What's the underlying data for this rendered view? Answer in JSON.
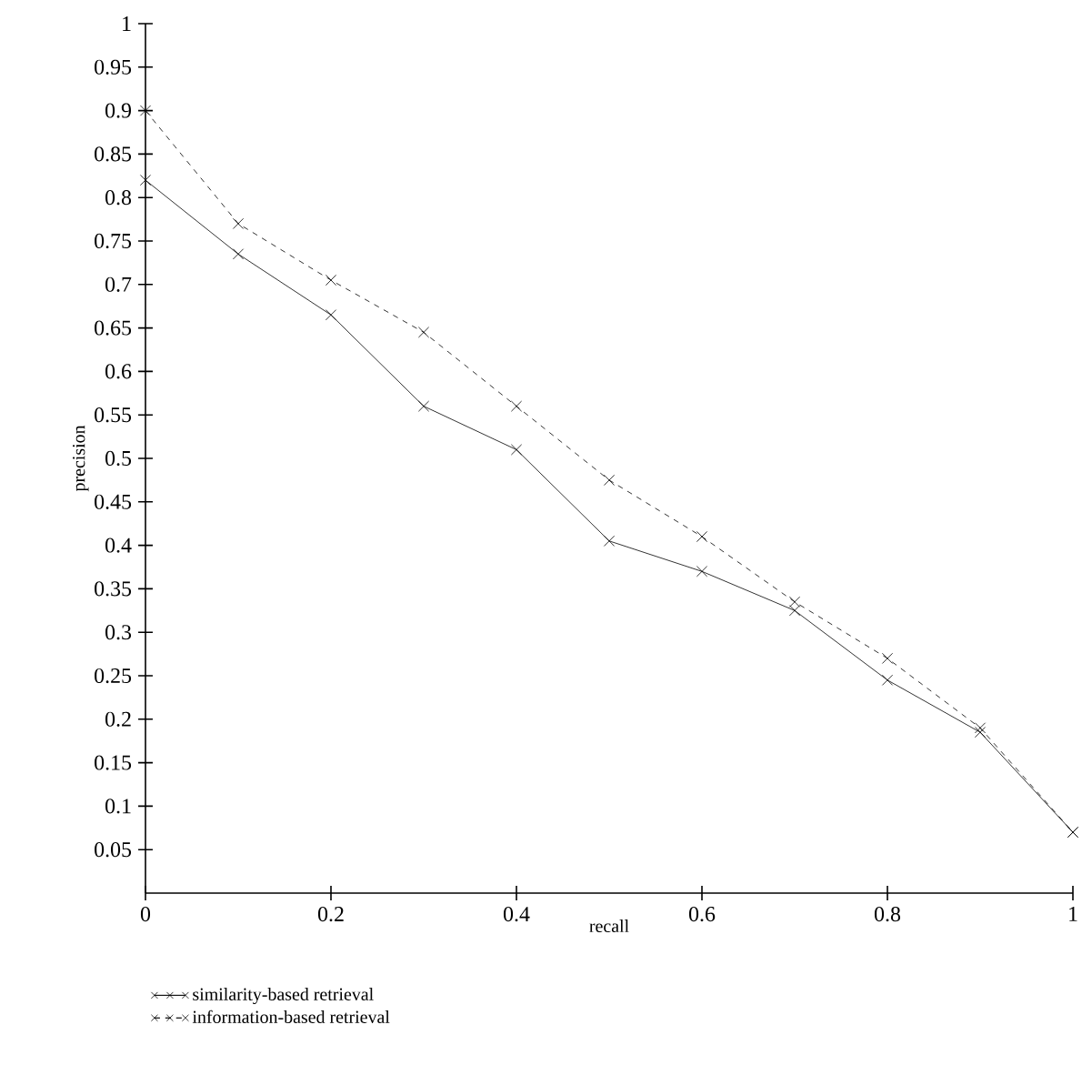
{
  "chart_data": {
    "type": "line",
    "xlabel": "recall",
    "ylabel": "precision",
    "x": [
      0,
      0.1,
      0.2,
      0.3,
      0.4,
      0.5,
      0.6,
      0.7,
      0.8,
      0.9,
      1
    ],
    "xlim": [
      0,
      1
    ],
    "ylim": [
      0,
      1
    ],
    "xticks": [
      0,
      0.2,
      0.4,
      0.6,
      0.8,
      1
    ],
    "yticks": [
      0.05,
      0.1,
      0.15,
      0.2,
      0.25,
      0.3,
      0.35,
      0.4,
      0.45,
      0.5,
      0.55,
      0.6,
      0.65,
      0.7,
      0.75,
      0.8,
      0.85,
      0.9,
      0.95,
      1
    ],
    "marker": "cross",
    "legend": "bottom",
    "grid": false,
    "series": [
      {
        "name": "similarity-based retrieval",
        "color": "#000000",
        "line_style": "solid",
        "values": [
          0.82,
          0.735,
          0.665,
          0.56,
          0.51,
          0.405,
          0.37,
          0.325,
          0.245,
          0.185,
          0.07
        ]
      },
      {
        "name": "information-based retrieval",
        "color": "#000000",
        "line_style": "dashed",
        "values": [
          0.9,
          0.77,
          0.705,
          0.645,
          0.56,
          0.475,
          0.41,
          0.335,
          0.27,
          0.19,
          0.07
        ]
      }
    ]
  }
}
